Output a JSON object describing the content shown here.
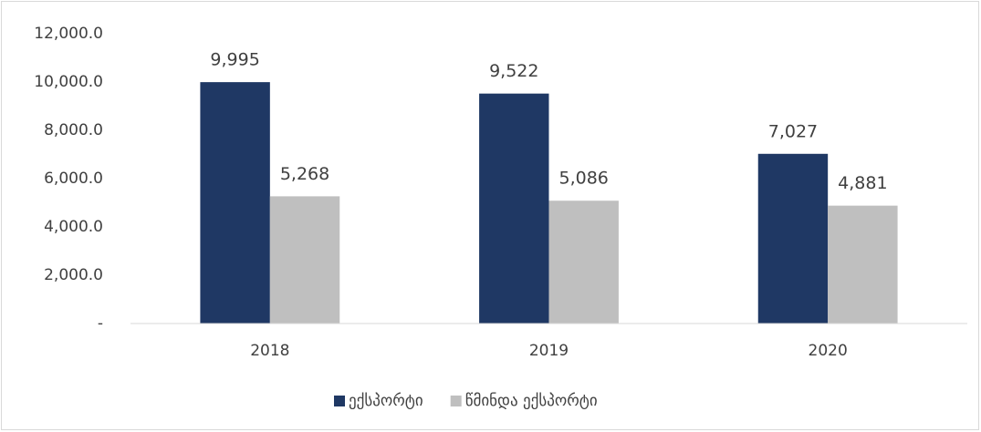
{
  "chart_data": {
    "type": "bar",
    "categories": [
      "2018",
      "2019",
      "2020"
    ],
    "series": [
      {
        "name": "ექსპორტი",
        "color": "#1f3864",
        "values": [
          9995,
          9522,
          7027
        ],
        "value_labels": [
          "9,995",
          "9,522",
          "7,027"
        ]
      },
      {
        "name": "წმინდა ექსპორტი",
        "color": "#bfbfbf",
        "values": [
          5268,
          5086,
          4881
        ],
        "value_labels": [
          "5,268",
          "5,086",
          "4,881"
        ]
      }
    ],
    "ylim": [
      0,
      12000
    ],
    "yticks": [
      {
        "value": 0,
        "label": "-"
      },
      {
        "value": 2000,
        "label": "2,000.0"
      },
      {
        "value": 4000,
        "label": "4,000.0"
      },
      {
        "value": 6000,
        "label": "6,000.0"
      },
      {
        "value": 8000,
        "label": "8,000.0"
      },
      {
        "value": 10000,
        "label": "10,000.0"
      },
      {
        "value": 12000,
        "label": "12,000.0"
      }
    ],
    "grid": false,
    "legend": "bottom"
  }
}
